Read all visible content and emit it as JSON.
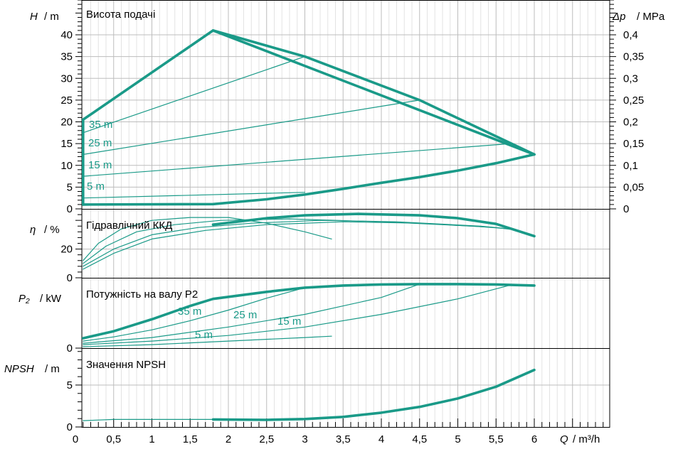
{
  "chart_data": {
    "type": "line",
    "colors": {
      "curve": "#1a9a88",
      "grid": "#bdbdbd",
      "axis": "#000000"
    },
    "x_axis": {
      "label_symbol": "Q",
      "label_unit": "/ m³/h",
      "range": [
        0,
        7.2
      ],
      "ticks": [
        0,
        0.5,
        1,
        1.5,
        2,
        2.5,
        3,
        3.5,
        4,
        4.5,
        5,
        5.5,
        6
      ],
      "tick_labels": [
        "0",
        "0,5",
        "1",
        "1,5",
        "2",
        "2,5",
        "3",
        "3,5",
        "4",
        "4,5",
        "5",
        "5,5",
        "6"
      ]
    },
    "panels": [
      {
        "id": "head",
        "title": "Висота подачі",
        "y_label_symbol": "H",
        "y_label_unit": "/ m",
        "y_range": [
          0,
          48
        ],
        "y_ticks": [
          0,
          5,
          10,
          15,
          20,
          25,
          30,
          35,
          40
        ],
        "y_tick_labels": [
          "0",
          "5",
          "10",
          "15",
          "20",
          "25",
          "30",
          "35",
          "40"
        ],
        "right_axis": {
          "label_symbol": "Δp",
          "label_unit": "/ MPa",
          "ticks": [
            0,
            5,
            10,
            15,
            20,
            25,
            30,
            35,
            40
          ],
          "tick_labels": [
            "0",
            "0,05",
            "0,1",
            "0,15",
            "0,2",
            "0,25",
            "0,3",
            "0,35",
            "0,4"
          ]
        },
        "series": [
          {
            "bold": true,
            "x": [
              0.1,
              1.8,
              6.0
            ],
            "y": [
              20.5,
              41.0,
              12.5
            ]
          },
          {
            "bold": true,
            "x": [
              1.8,
              3.0,
              4.5,
              6.0
            ],
            "y": [
              41.0,
              35.0,
              25.0,
              12.5
            ]
          },
          {
            "bold": true,
            "x": [
              0.1,
              0.1
            ],
            "y": [
              1.0,
              20.5
            ]
          },
          {
            "bold": true,
            "x": [
              0.1,
              1.8,
              2.5,
              3.0,
              3.5,
              4.0,
              4.5,
              5.0,
              5.5,
              6.0
            ],
            "y": [
              1.0,
              1.1,
              2.2,
              3.3,
              4.6,
              6.0,
              7.3,
              8.8,
              10.5,
              12.5
            ]
          },
          {
            "bold": false,
            "name": "35 m",
            "x": [
              0.1,
              3.0
            ],
            "y": [
              17.5,
              35.0
            ]
          },
          {
            "bold": false,
            "name": "25 m",
            "x": [
              0.1,
              4.5
            ],
            "y": [
              12.5,
              25.0
            ]
          },
          {
            "bold": false,
            "name": "15 m",
            "x": [
              0.1,
              5.7
            ],
            "y": [
              7.5,
              15.0
            ]
          },
          {
            "bold": false,
            "name": "5 m",
            "x": [
              0.1,
              3.0
            ],
            "y": [
              2.5,
              3.8
            ]
          }
        ]
      },
      {
        "id": "efficiency",
        "title": "Гідравлічний ККД",
        "y_label_symbol": "η",
        "y_label_unit": "/ %",
        "y_range": [
          0,
          48
        ],
        "y_ticks": [
          0,
          20
        ],
        "y_tick_labels": [
          "0",
          "20"
        ],
        "series": [
          {
            "bold": true,
            "x": [
              1.8,
              2.5,
              3.0,
              3.7,
              4.5,
              5.0,
              5.5,
              6.0
            ],
            "y": [
              37,
              41.5,
              43.5,
              44.5,
              43.5,
              41.5,
              37.5,
              29
            ]
          },
          {
            "bold": false,
            "x": [
              0.1,
              0.3,
              0.6,
              1.0,
              1.5,
              2.0,
              2.5,
              3.0,
              3.35
            ],
            "y": [
              12,
              24,
              34,
              40,
              42,
              42,
              38,
              32,
              27
            ]
          },
          {
            "bold": false,
            "x": [
              0.1,
              0.4,
              0.8,
              1.3,
              1.9,
              2.8,
              4.0,
              5.2,
              5.7
            ],
            "y": [
              10,
              22,
              32,
              37,
              40,
              41,
              39,
              36,
              34
            ]
          },
          {
            "bold": false,
            "x": [
              0.1,
              0.5,
              1.0,
              1.6,
              2.3,
              3.2,
              4.2,
              5.3,
              5.7
            ],
            "y": [
              8,
              20,
              30,
              35,
              38,
              40,
              39,
              36,
              34
            ]
          },
          {
            "bold": false,
            "x": [
              0.1,
              0.5,
              1.0,
              1.7,
              2.5,
              3.5,
              4.5,
              5.5,
              5.8
            ],
            "y": [
              6,
              17,
              27,
              33,
              37,
              39,
              38,
              35,
              33
            ]
          }
        ]
      },
      {
        "id": "power",
        "title": "Потужність на валу P2",
        "y_label_symbol": "P₂",
        "y_label_unit": "/ kW",
        "y_range": [
          0,
          1
        ],
        "y_ticks": [
          0
        ],
        "y_tick_labels": [
          "0"
        ],
        "series": [
          {
            "bold": true,
            "x": [
              0.1,
              0.5,
              1.0,
              1.5,
              1.8,
              2.5,
              3.0,
              3.5,
              4.0,
              4.5,
              5.0,
              5.5,
              6.0
            ],
            "y": [
              0.14,
              0.24,
              0.41,
              0.6,
              0.7,
              0.8,
              0.86,
              0.89,
              0.905,
              0.91,
              0.91,
              0.905,
              0.89
            ]
          },
          {
            "bold": false,
            "name": "35 m",
            "x": [
              0.1,
              0.5,
              1.0,
              1.5,
              2.0,
              2.5,
              3.0
            ],
            "y": [
              0.1,
              0.16,
              0.26,
              0.39,
              0.54,
              0.71,
              0.86
            ]
          },
          {
            "bold": false,
            "name": "25 m",
            "x": [
              0.1,
              1.0,
              2.0,
              3.0,
              4.0,
              4.5
            ],
            "y": [
              0.07,
              0.15,
              0.3,
              0.48,
              0.72,
              0.91
            ]
          },
          {
            "bold": false,
            "name": "15 m",
            "x": [
              0.1,
              1.0,
              2.0,
              3.0,
              4.0,
              5.0,
              5.7
            ],
            "y": [
              0.05,
              0.1,
              0.18,
              0.3,
              0.48,
              0.7,
              0.9
            ]
          },
          {
            "bold": false,
            "name": "5 m",
            "x": [
              0.1,
              1.0,
              2.0,
              3.0,
              3.35
            ],
            "y": [
              0.02,
              0.05,
              0.1,
              0.15,
              0.17
            ]
          }
        ]
      },
      {
        "id": "npsh",
        "title": "Значення NPSH",
        "y_label_symbol": "NPSH",
        "y_label_unit": "/ m",
        "y_range": [
          0,
          9.4
        ],
        "y_ticks": [
          0,
          5
        ],
        "y_tick_labels": [
          "0",
          "5"
        ],
        "series": [
          {
            "bold": false,
            "x": [
              0.1,
              0.5,
              1.0,
              1.8
            ],
            "y": [
              0.75,
              0.9,
              0.9,
              0.9
            ]
          },
          {
            "bold": true,
            "x": [
              1.8,
              2.5,
              3.0,
              3.5,
              4.0,
              4.5,
              5.0,
              5.5,
              6.0
            ],
            "y": [
              0.9,
              0.85,
              0.95,
              1.2,
              1.7,
              2.4,
              3.4,
              4.8,
              6.8
            ]
          }
        ]
      }
    ]
  }
}
